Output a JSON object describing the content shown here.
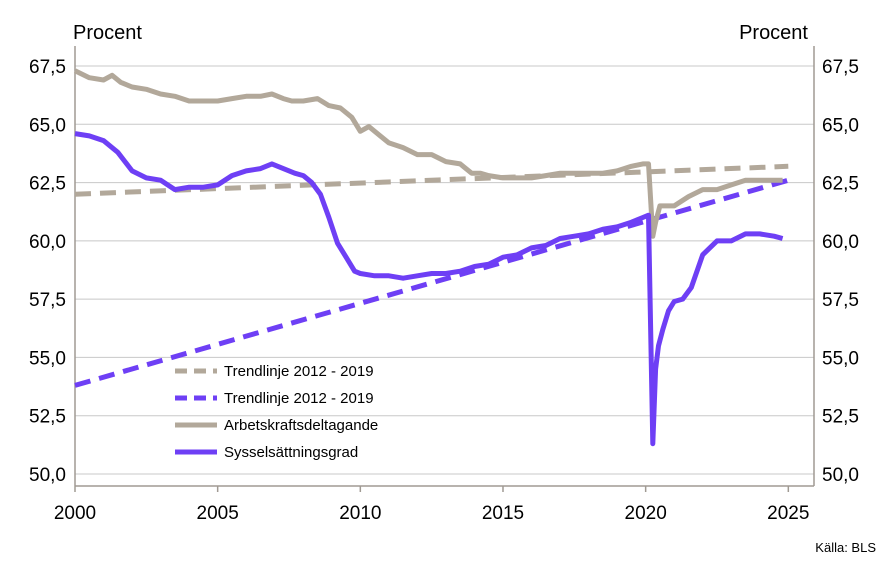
{
  "chart_data": {
    "type": "line",
    "left_unit": "Procent",
    "right_unit": "Procent",
    "source": "Källa: BLS",
    "xlim": [
      2000,
      2025.9
    ],
    "ylim": [
      50,
      67.5
    ],
    "x_ticks": [
      "2000",
      "2005",
      "2010",
      "2015",
      "2020",
      "2025"
    ],
    "y_ticks": [
      "50,0",
      "52,5",
      "55,0",
      "57,5",
      "60,0",
      "62,5",
      "65,0",
      "67,5"
    ],
    "grid": true,
    "legend_position": "bottom-center",
    "colors": {
      "participation": "#b2a89a",
      "employment": "#6e3ff5",
      "grid": "#c8c8c8",
      "axis": "#a09a93"
    },
    "series": [
      {
        "name": "Trendlinje 2012 - 2019",
        "style": "dashed",
        "color": "#b2a89a",
        "x": [
          2000,
          2025
        ],
        "y": [
          62.0,
          63.2
        ]
      },
      {
        "name": "Trendlinje 2012 - 2019",
        "style": "dashed",
        "color": "#6e3ff5",
        "x": [
          2000,
          2025
        ],
        "y": [
          53.8,
          62.6
        ]
      },
      {
        "name": "Arbetskraftsdeltagande",
        "style": "solid",
        "color": "#b2a89a",
        "x": [
          2000.0,
          2000.5,
          2001.0,
          2001.3,
          2001.6,
          2002.0,
          2002.5,
          2003.0,
          2003.5,
          2004.0,
          2004.5,
          2005.0,
          2005.5,
          2006.0,
          2006.5,
          2006.9,
          2007.3,
          2007.6,
          2008.0,
          2008.5,
          2008.9,
          2009.3,
          2009.7,
          2010.0,
          2010.3,
          2010.7,
          2011.0,
          2011.5,
          2012.0,
          2012.5,
          2013.0,
          2013.5,
          2013.9,
          2014.2,
          2014.5,
          2015.0,
          2015.5,
          2016.0,
          2016.5,
          2017.0,
          2017.5,
          2018.0,
          2018.5,
          2019.0,
          2019.5,
          2019.9,
          2020.1,
          2020.25,
          2020.35,
          2020.5,
          2020.7,
          2021.0,
          2021.5,
          2022.0,
          2022.5,
          2023.0,
          2023.5,
          2024.0,
          2024.5,
          2024.8
        ],
        "y": [
          67.3,
          67.0,
          66.9,
          67.1,
          66.8,
          66.6,
          66.5,
          66.3,
          66.2,
          66.0,
          66.0,
          66.0,
          66.1,
          66.2,
          66.2,
          66.3,
          66.1,
          66.0,
          66.0,
          66.1,
          65.8,
          65.7,
          65.3,
          64.7,
          64.9,
          64.5,
          64.2,
          64.0,
          63.7,
          63.7,
          63.4,
          63.3,
          62.9,
          62.9,
          62.8,
          62.7,
          62.7,
          62.7,
          62.8,
          62.9,
          62.9,
          62.9,
          62.9,
          63.0,
          63.2,
          63.3,
          63.3,
          60.2,
          60.8,
          61.5,
          61.5,
          61.5,
          61.9,
          62.2,
          62.2,
          62.4,
          62.6,
          62.6,
          62.6,
          62.6
        ]
      },
      {
        "name": "Sysselsättningsgrad",
        "style": "solid",
        "color": "#6e3ff5",
        "x": [
          2000.0,
          2000.5,
          2001.0,
          2001.5,
          2002.0,
          2002.5,
          2003.0,
          2003.5,
          2004.0,
          2004.5,
          2005.0,
          2005.5,
          2006.0,
          2006.5,
          2006.9,
          2007.3,
          2007.7,
          2008.0,
          2008.3,
          2008.6,
          2008.9,
          2009.2,
          2009.5,
          2009.8,
          2010.0,
          2010.5,
          2011.0,
          2011.5,
          2012.0,
          2012.5,
          2013.0,
          2013.5,
          2014.0,
          2014.5,
          2015.0,
          2015.5,
          2016.0,
          2016.5,
          2017.0,
          2017.5,
          2018.0,
          2018.5,
          2019.0,
          2019.5,
          2019.9,
          2020.1,
          2020.25,
          2020.35,
          2020.45,
          2020.6,
          2020.8,
          2021.0,
          2021.3,
          2021.6,
          2022.0,
          2022.5,
          2023.0,
          2023.5,
          2024.0,
          2024.5,
          2024.8
        ],
        "y": [
          64.6,
          64.5,
          64.3,
          63.8,
          63.0,
          62.7,
          62.6,
          62.2,
          62.3,
          62.3,
          62.4,
          62.8,
          63.0,
          63.1,
          63.3,
          63.1,
          62.9,
          62.8,
          62.5,
          62.0,
          61.0,
          59.9,
          59.3,
          58.7,
          58.6,
          58.5,
          58.5,
          58.4,
          58.5,
          58.6,
          58.6,
          58.7,
          58.9,
          59.0,
          59.3,
          59.4,
          59.7,
          59.8,
          60.1,
          60.2,
          60.3,
          60.5,
          60.6,
          60.8,
          61.0,
          61.1,
          51.3,
          54.5,
          55.5,
          56.2,
          57.0,
          57.4,
          57.5,
          58.0,
          59.4,
          60.0,
          60.0,
          60.3,
          60.3,
          60.2,
          60.1
        ]
      }
    ]
  }
}
